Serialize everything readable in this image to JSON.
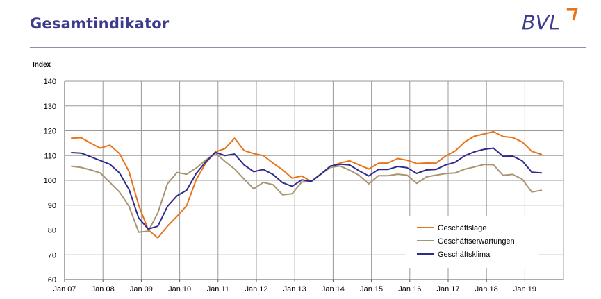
{
  "header": {
    "title": "Gesamtindikator",
    "logo_text": "BVL"
  },
  "colors": {
    "title": "#3d3b8e",
    "logo": "#3d3b8e",
    "logo_accent": "#e8731a"
  },
  "chart_data": {
    "type": "line",
    "title": "",
    "ylabel": "Index",
    "xlabel": "",
    "ylim": [
      60,
      140
    ],
    "yticks": [
      60,
      70,
      80,
      90,
      100,
      110,
      120,
      130,
      140
    ],
    "x_tick_labels": [
      "Jan 07",
      "Jan 08",
      "Jan 09",
      "Jan 10",
      "Jan 11",
      "Jan 12",
      "Jan 13",
      "Jan 14",
      "Jan 15",
      "Jan 16",
      "Jan 17",
      "Jan 18",
      "Jan 19"
    ],
    "x_unit": "quarter",
    "grid": true,
    "legend_position": "bottom-right",
    "series": [
      {
        "name": "Geschäftslage",
        "color": "#e8731a",
        "values": [
          117,
          117.2,
          115,
          113,
          114.2,
          110.8,
          103.5,
          90,
          80,
          76.8,
          81.5,
          85.5,
          89.8,
          100.3,
          107,
          111.5,
          112.8,
          117,
          112,
          110.8,
          110,
          107,
          104.3,
          100.9,
          101.8,
          99.6,
          102.6,
          105.5,
          107,
          107.9,
          106.2,
          104.6,
          106.9,
          107,
          108.8,
          108.1,
          106.8,
          107,
          106.9,
          109.8,
          111.8,
          115.5,
          117.8,
          118.7,
          119.6,
          117.7,
          117.3,
          115.5,
          111.7,
          110.5
        ]
      },
      {
        "name": "Geschäftserwartungen",
        "color": "#a89470",
        "values": [
          105.7,
          105.2,
          104.2,
          103,
          99.2,
          95.3,
          89.5,
          79.1,
          79.5,
          86.9,
          98.6,
          103.2,
          102.5,
          105,
          108.2,
          111,
          107.6,
          104.6,
          100.5,
          96.6,
          99.2,
          98.3,
          94.2,
          94.6,
          99.3,
          99.6,
          102.5,
          105.2,
          105.8,
          104.1,
          102,
          98.6,
          101.9,
          101.9,
          102.5,
          102.1,
          98.8,
          101.4,
          102.1,
          102.7,
          103,
          104.5,
          105.4,
          106.4,
          106.3,
          102,
          102.4,
          100.5,
          95.3,
          96
        ]
      },
      {
        "name": "Geschäftsklima",
        "color": "#2e2a8e",
        "values": [
          111.2,
          111,
          109.5,
          108,
          106.5,
          103,
          96.3,
          84.8,
          80.4,
          81.5,
          89.5,
          93.8,
          96,
          102.8,
          107.5,
          111.3,
          110,
          110.6,
          106.2,
          103.5,
          104.4,
          102.4,
          99.1,
          97.6,
          100.2,
          99.6,
          102.5,
          105.8,
          106.5,
          106.2,
          103.8,
          101.8,
          104.4,
          104.4,
          105.6,
          105.1,
          102.8,
          104.2,
          104.4,
          106.2,
          107.3,
          109.9,
          111.5,
          112.5,
          113,
          109.7,
          109.8,
          107.9,
          103.3,
          103
        ]
      }
    ]
  }
}
